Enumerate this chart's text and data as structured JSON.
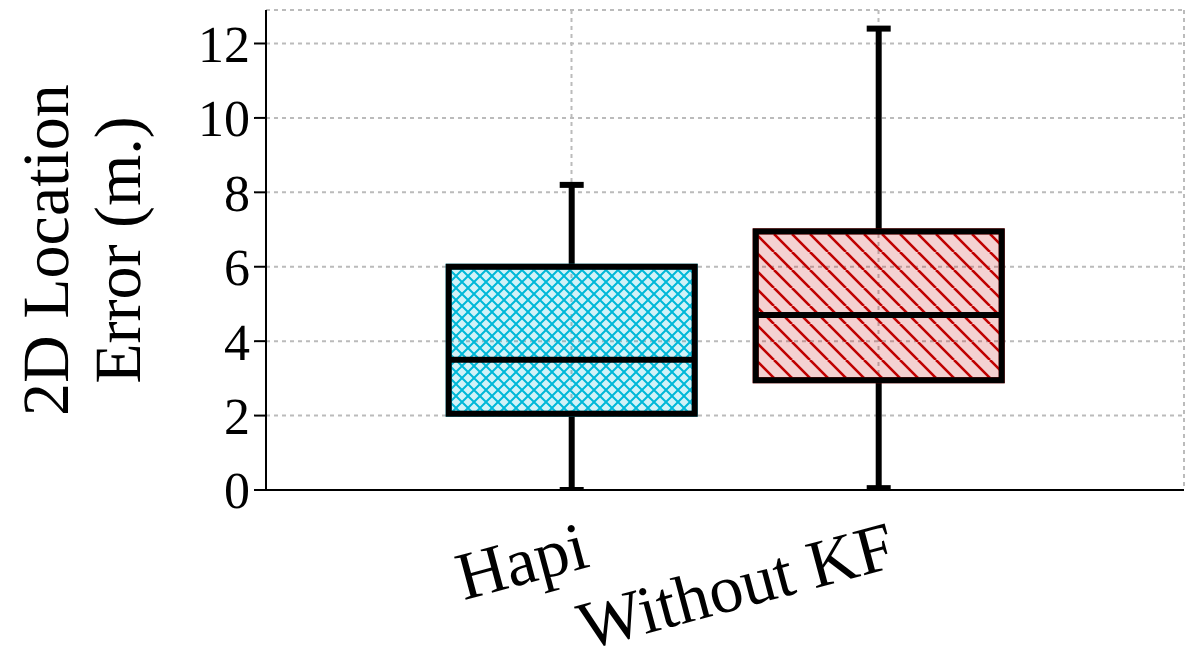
{
  "chart_data": {
    "type": "box",
    "ylabel": "2D Location Error (m.)",
    "categories": [
      "Hapi",
      "Without KF"
    ],
    "boxes": [
      {
        "low": 0,
        "q1": 2.05,
        "median": 3.5,
        "q3": 6.0,
        "high": 8.2
      },
      {
        "low": 0.05,
        "q1": 2.95,
        "median": 4.7,
        "q3": 6.95,
        "high": 12.4
      }
    ],
    "colors": [
      "#00b8d8",
      "#c00000"
    ],
    "ylim": [
      0,
      12.9
    ],
    "yticks": [
      0,
      2,
      4,
      6,
      8,
      10,
      12
    ],
    "grid": true
  }
}
